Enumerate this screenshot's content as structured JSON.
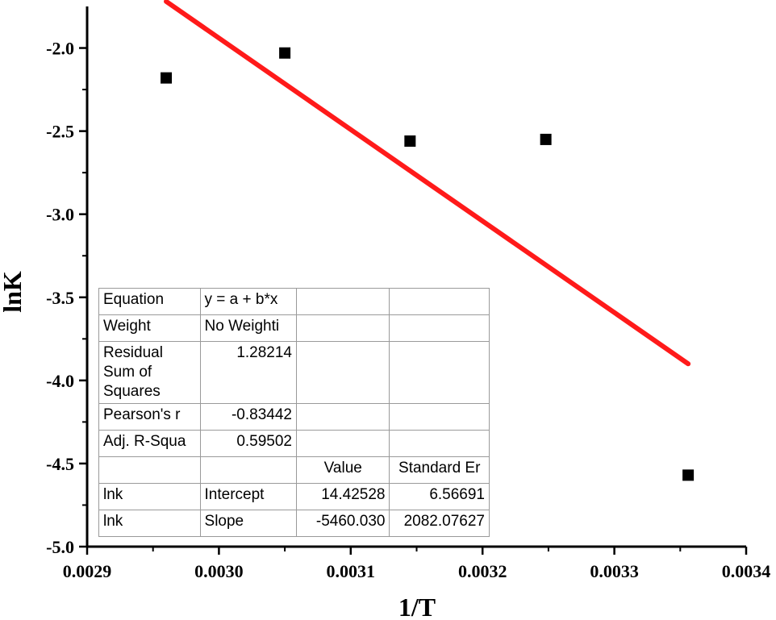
{
  "chart_data": {
    "type": "scatter",
    "xlabel": "1/T",
    "ylabel": "lnK",
    "xlim": [
      0.0029,
      0.0034
    ],
    "ylim": [
      -5.0,
      -1.75
    ],
    "x_ticks": [
      "0.0029",
      "0.0030",
      "0.0031",
      "0.0032",
      "0.0033",
      "0.0034"
    ],
    "y_ticks": [
      "-5.0",
      "-4.5",
      "-4.0",
      "-3.5",
      "-3.0",
      "-2.5",
      "-2.0"
    ],
    "series": [
      {
        "type": "scatter",
        "x": [
          0.00296,
          0.00305,
          0.003145,
          0.003248,
          0.003356
        ],
        "y": [
          -2.18,
          -2.03,
          -2.56,
          -2.55,
          -4.57
        ],
        "color": "#000000"
      },
      {
        "type": "line",
        "x": [
          0.00296,
          0.003356
        ],
        "y": [
          -1.72,
          -3.9
        ],
        "color": "#ff1a1a"
      }
    ],
    "grid": false,
    "fit_table": {
      "rows": [
        [
          "Equation",
          "y = a + b*x",
          "",
          ""
        ],
        [
          "Weight",
          "No Weighti",
          "",
          ""
        ],
        [
          "Residual Sum of Squares",
          "1.28214",
          "",
          ""
        ],
        [
          "Pearson's r",
          "-0.83442",
          "",
          ""
        ],
        [
          "Adj. R-Squa",
          "0.59502",
          "",
          ""
        ],
        [
          "",
          "",
          "Value",
          "Standard Er"
        ],
        [
          "lnk",
          "Intercept",
          "14.42528",
          "6.56691"
        ],
        [
          "lnk",
          "Slope",
          "-5460.030",
          "2082.07627"
        ]
      ]
    }
  }
}
